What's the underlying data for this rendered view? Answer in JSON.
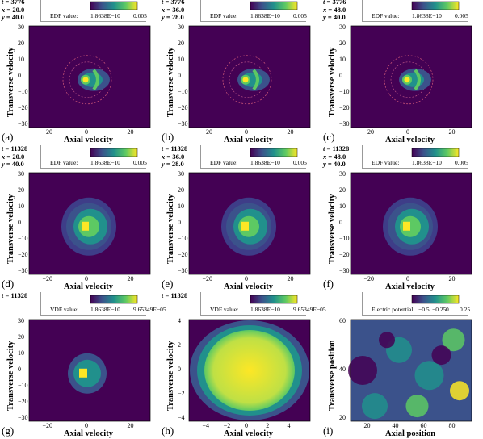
{
  "colors": {
    "c0": "#440154",
    "c1": "#3b528b",
    "c2": "#21908c",
    "c3": "#5dc963",
    "c4": "#fde725"
  },
  "panels": [
    {
      "label": "(a)",
      "t": "3776",
      "x": "20.0",
      "y": "40.0",
      "ylabel": "Transverse velocity",
      "xlabel": "Axial velocity",
      "cb_name": "EDF value:",
      "cb_min": "1.8638E−10",
      "cb_max": "0.005",
      "xticks": [
        "−20",
        "0",
        "20"
      ],
      "yticks": [
        "30",
        "20",
        "10",
        "0",
        "−10",
        "−20",
        "−30"
      ],
      "kind": "edf-early"
    },
    {
      "label": "(b)",
      "t": "3776",
      "x": "36.0",
      "y": "28.0",
      "ylabel": "Transverse velocity",
      "xlabel": "Axial velocity",
      "cb_name": "EDF value:",
      "cb_min": "1.8638E−10",
      "cb_max": "0.005",
      "xticks": [
        "−20",
        "0",
        "20"
      ],
      "yticks": [
        "30",
        "20",
        "10",
        "0",
        "−10",
        "−20",
        "−30"
      ],
      "kind": "edf-early"
    },
    {
      "label": "(c)",
      "t": "3776",
      "x": "48.0",
      "y": "40.0",
      "ylabel": "Transverse velocity",
      "xlabel": "Axial velocity",
      "cb_name": "EDF value:",
      "cb_min": "1.8638E−10",
      "cb_max": "0.005",
      "xticks": [
        "−20",
        "0",
        "20"
      ],
      "yticks": [
        "30",
        "20",
        "10",
        "0",
        "−10",
        "−20",
        "−30"
      ],
      "kind": "edf-early"
    },
    {
      "label": "(d)",
      "t": "11328",
      "x": "20.0",
      "y": "40.0",
      "ylabel": "Transverse velocity",
      "xlabel": "Axial velocity",
      "cb_name": "EDF value:",
      "cb_min": "1.8638E−10",
      "cb_max": "0.005",
      "xticks": [
        "−20",
        "0",
        "20"
      ],
      "yticks": [
        "30",
        "20",
        "10",
        "0",
        "−10",
        "−20",
        "−30"
      ],
      "kind": "edf-late"
    },
    {
      "label": "(e)",
      "t": "11328",
      "x": "36.0",
      "y": "28.0",
      "ylabel": "Transverse velocity",
      "xlabel": "Axial velocity",
      "cb_name": "EDF value:",
      "cb_min": "1.8638E−10",
      "cb_max": "0.005",
      "xticks": [
        "−20",
        "0",
        "20"
      ],
      "yticks": [
        "30",
        "20",
        "10",
        "0",
        "−10",
        "−20",
        "−30"
      ],
      "kind": "edf-late"
    },
    {
      "label": "(f)",
      "t": "11328",
      "x": "48.0",
      "y": "40.0",
      "ylabel": "Transverse velocity",
      "xlabel": "Axial velocity",
      "cb_name": "EDF value:",
      "cb_min": "1.8638E−10",
      "cb_max": "0.005",
      "xticks": [
        "−20",
        "0",
        "20"
      ],
      "yticks": [
        "30",
        "20",
        "10",
        "0",
        "−10",
        "−20",
        "−30"
      ],
      "kind": "edf-late"
    },
    {
      "label": "(g)",
      "t": "11328",
      "ylabel": "Transverse velocity",
      "xlabel": "Axial velocity",
      "cb_name": "VDF value:",
      "cb_min": "1.8638E−10",
      "cb_max": "9.65349E−05",
      "xticks": [
        "−20",
        "0",
        "20"
      ],
      "yticks": [
        "30",
        "20",
        "10",
        "0",
        "−10",
        "−20",
        "−30"
      ],
      "kind": "vdf-wide"
    },
    {
      "label": "(h)",
      "t": "11328",
      "ylabel": "Transverse velocity",
      "xlabel": "Axial velocity",
      "cb_name": "VDF value:",
      "cb_min": "1.8638E−10",
      "cb_max": "9.65349E−05",
      "xticks": [
        "−4",
        "−2",
        "0",
        "2",
        "4"
      ],
      "yticks": [
        "4",
        "2",
        "0",
        "−2",
        "−4"
      ],
      "kind": "vdf-zoom"
    },
    {
      "label": "(i)",
      "ylabel": "Transverse position",
      "xlabel": "Axial position",
      "cb_name": "Electric potential:",
      "cb_ticks": [
        "−0.5",
        "−0.25",
        "0",
        "0.25"
      ],
      "xticks": [
        "20",
        "40",
        "60",
        "80"
      ],
      "yticks": [
        "60",
        "40",
        "20"
      ],
      "kind": "potential"
    }
  ]
}
